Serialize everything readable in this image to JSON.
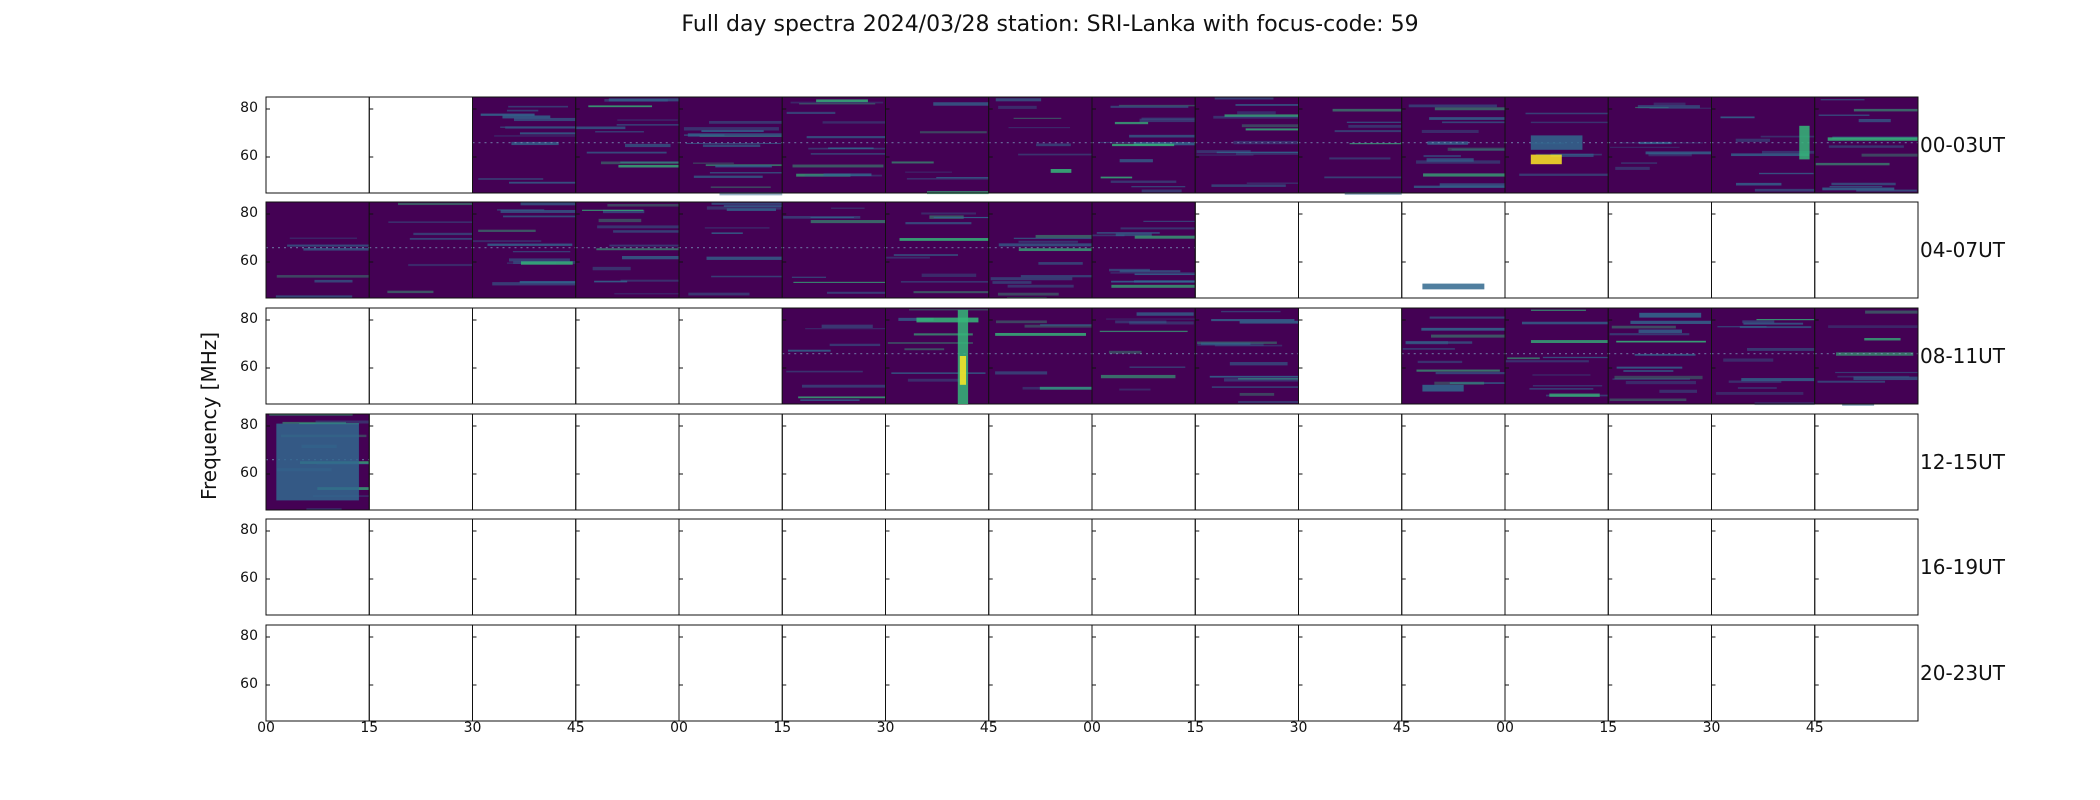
{
  "chart_data": {
    "type": "heatmap",
    "title": "Full day spectra 2024/03/28 station: SRI-Lanka with focus-code: 59",
    "ylabel": "Frequency [MHz]",
    "xlabel": "",
    "yticks": [
      "80",
      "60"
    ],
    "xticks": [
      "00",
      "15",
      "30",
      "45",
      "00",
      "15",
      "30",
      "45",
      "00",
      "15",
      "30",
      "45",
      "00",
      "15",
      "30",
      "45"
    ],
    "ylim": [
      45,
      85
    ],
    "row_labels": [
      "00-03UT",
      "04-07UT",
      "08-11UT",
      "12-15UT",
      "16-19UT",
      "20-23UT"
    ],
    "colormap": "viridis",
    "panels_per_row": 16,
    "availability": [
      [
        0,
        0,
        1,
        1,
        1,
        1,
        1,
        1,
        1,
        1,
        1,
        1,
        1,
        1,
        1,
        1
      ],
      [
        1,
        1,
        1,
        1,
        1,
        1,
        1,
        1,
        1,
        0,
        0,
        0,
        0,
        0,
        0,
        0
      ],
      [
        0,
        0,
        0,
        0,
        0,
        1,
        1,
        1,
        1,
        1,
        0,
        1,
        1,
        1,
        1,
        1
      ],
      [
        1,
        0,
        0,
        0,
        0,
        0,
        0,
        0,
        0,
        0,
        0,
        0,
        0,
        0,
        0,
        0
      ],
      [
        0,
        0,
        0,
        0,
        0,
        0,
        0,
        0,
        0,
        0,
        0,
        0,
        0,
        0,
        0,
        0
      ],
      [
        0,
        0,
        0,
        0,
        0,
        0,
        0,
        0,
        0,
        0,
        0,
        0,
        0,
        0,
        0,
        0
      ]
    ],
    "colors": {
      "background": "#3b1a5a",
      "low": "#440154",
      "mid": "#31688e",
      "high": "#35b779",
      "peak": "#fde725"
    }
  }
}
